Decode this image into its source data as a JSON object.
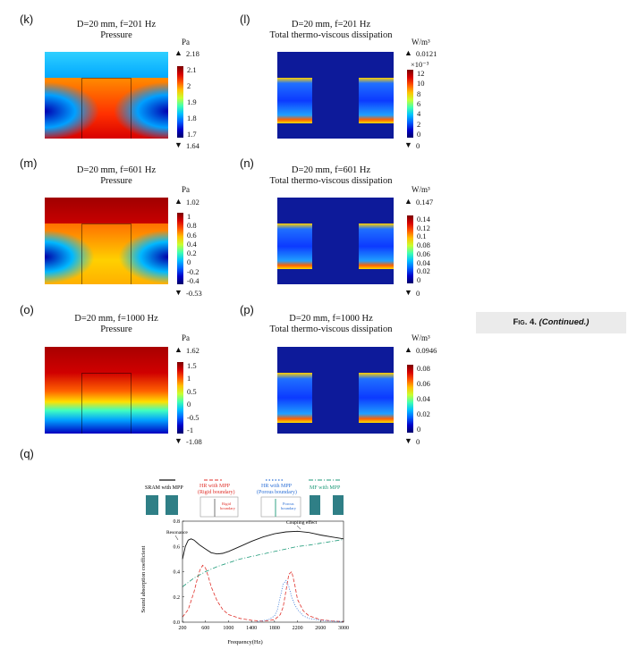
{
  "panels": [
    {
      "id": "k",
      "label": "(k)",
      "title_line1": "D=20 mm, f=201 Hz",
      "title_line2": "Pressure",
      "unit": "Pa",
      "max": "2.18",
      "min": "1.64",
      "ticks": [
        "2.1",
        "2",
        "1.9",
        "1.8",
        "1.7"
      ],
      "exp": ""
    },
    {
      "id": "l",
      "label": "(l)",
      "title_line1": "D=20 mm, f=201 Hz",
      "title_line2": "Total thermo-viscous dissipation",
      "unit": "W/m³",
      "max": "0.0121",
      "min": "0",
      "ticks": [
        "12",
        "10",
        "8",
        "6",
        "4",
        "2",
        "0"
      ],
      "exp": "×10⁻³"
    },
    {
      "id": "m",
      "label": "(m)",
      "title_line1": "D=20 mm, f=601 Hz",
      "title_line2": "Pressure",
      "unit": "Pa",
      "max": "1.02",
      "min": "-0.53",
      "ticks": [
        "1",
        "0.8",
        "0.6",
        "0.4",
        "0.2",
        "0",
        "-0.2",
        "-0.4"
      ],
      "exp": ""
    },
    {
      "id": "n",
      "label": "(n)",
      "title_line1": "D=20 mm, f=601 Hz",
      "title_line2": "Total thermo-viscous dissipation",
      "unit": "W/m³",
      "max": "0.147",
      "min": "0",
      "ticks": [
        "0.14",
        "0.12",
        "0.1",
        "0.08",
        "0.06",
        "0.04",
        "0.02",
        "0"
      ],
      "exp": ""
    },
    {
      "id": "o",
      "label": "(o)",
      "title_line1": "D=20 mm, f=1000 Hz",
      "title_line2": "Pressure",
      "unit": "Pa",
      "max": "1.62",
      "min": "-1.08",
      "ticks": [
        "1.5",
        "1",
        "0.5",
        "0",
        "-0.5",
        "-1"
      ],
      "exp": ""
    },
    {
      "id": "p",
      "label": "(p)",
      "title_line1": "D=20 mm, f=1000 Hz",
      "title_line2": "Total thermo-viscous dissipation",
      "unit": "W/m³",
      "max": "0.0946",
      "min": "0",
      "ticks": [
        "0.08",
        "0.06",
        "0.04",
        "0.02",
        "0"
      ],
      "exp": ""
    }
  ],
  "caption": {
    "fig": "Fig. 4.",
    "cont": "(Continued.)"
  },
  "q": {
    "label": "(q)",
    "legend": {
      "sram": "SRAM with MPP",
      "hr_rigid": [
        "HR with MPP",
        "(Rigid boundary)"
      ],
      "hr_porous": [
        "HR with MPP",
        "(Porous boundary)"
      ],
      "mf": "MF with MPP",
      "rigid_note": [
        "Rigid",
        "boundary"
      ],
      "porous_note": [
        "Porous",
        "boundary"
      ]
    },
    "annotations": {
      "resonance": "Resonance",
      "coupling": "Coupling effect"
    },
    "colors": {
      "sram": "#111111",
      "hr_rigid": "#e0312b",
      "hr_porous": "#2b6fd6",
      "mf": "#1c9a78",
      "block": "#2f7f86"
    }
  },
  "chart_data": {
    "type": "line",
    "xlabel": "Frequency(Hz)",
    "ylabel": "Sound absorption coefficient",
    "xlim": [
      200,
      3000
    ],
    "ylim": [
      0,
      0.8
    ],
    "xticks": [
      "200",
      "600",
      "1000",
      "1400",
      "1800",
      "2200",
      "2600",
      "3000"
    ],
    "yticks": [
      "0.0",
      "0.2",
      "0.4",
      "0.6",
      "0.8"
    ],
    "series": [
      {
        "name": "SRAM with MPP",
        "style": "solid",
        "color": "#111111",
        "x": [
          200,
          250,
          300,
          350,
          400,
          450,
          500,
          600,
          700,
          800,
          900,
          1000,
          1200,
          1400,
          1600,
          1800,
          2000,
          2200,
          2400,
          2500,
          2600,
          2800,
          3000
        ],
        "y": [
          0.5,
          0.6,
          0.65,
          0.66,
          0.65,
          0.63,
          0.61,
          0.58,
          0.55,
          0.54,
          0.545,
          0.56,
          0.6,
          0.64,
          0.675,
          0.7,
          0.715,
          0.72,
          0.71,
          0.7,
          0.69,
          0.675,
          0.66
        ]
      },
      {
        "name": "HR with MPP (Rigid boundary)",
        "style": "dashed",
        "color": "#e0312b",
        "x": [
          200,
          300,
          400,
          450,
          500,
          550,
          600,
          650,
          700,
          800,
          900,
          1000,
          1200,
          1400,
          1600,
          1800,
          1900,
          1950,
          2000,
          2050,
          2100,
          2150,
          2200,
          2300,
          2400,
          2600,
          2800,
          3000
        ],
        "y": [
          0.04,
          0.1,
          0.24,
          0.33,
          0.41,
          0.45,
          0.43,
          0.36,
          0.28,
          0.17,
          0.1,
          0.06,
          0.03,
          0.015,
          0.008,
          0.02,
          0.06,
          0.12,
          0.25,
          0.38,
          0.4,
          0.3,
          0.18,
          0.09,
          0.05,
          0.02,
          0.01,
          0.005
        ]
      },
      {
        "name": "HR with MPP (Porous boundary)",
        "style": "dotted",
        "color": "#2b6fd6",
        "x": [
          1500,
          1700,
          1800,
          1850,
          1900,
          1950,
          2000,
          2050,
          2100,
          2150,
          2200,
          2300,
          2400,
          2600,
          2800,
          3000
        ],
        "y": [
          0.005,
          0.02,
          0.05,
          0.1,
          0.2,
          0.3,
          0.33,
          0.28,
          0.2,
          0.14,
          0.1,
          0.05,
          0.03,
          0.015,
          0.008,
          0.004
        ]
      },
      {
        "name": "MF with MPP",
        "style": "dashdot",
        "color": "#1c9a78",
        "x": [
          200,
          400,
          600,
          800,
          1000,
          1200,
          1400,
          1600,
          1800,
          2000,
          2200,
          2400,
          2600,
          2800,
          3000
        ],
        "y": [
          0.28,
          0.35,
          0.4,
          0.44,
          0.47,
          0.5,
          0.52,
          0.54,
          0.56,
          0.58,
          0.6,
          0.61,
          0.625,
          0.64,
          0.655
        ]
      }
    ]
  }
}
